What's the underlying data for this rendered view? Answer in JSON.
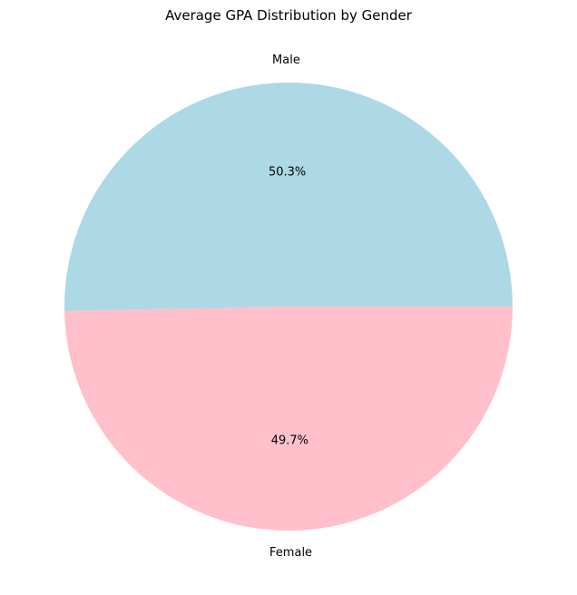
{
  "chart_data": {
    "type": "pie",
    "title": "Average GPA Distribution by Gender",
    "slices": [
      {
        "label": "Male",
        "percent": "50.3%",
        "value": 50.3,
        "color": "#add8e6"
      },
      {
        "label": "Female",
        "percent": "49.7%",
        "value": 49.7,
        "color": "#ffc0cb"
      }
    ],
    "start_angle_deg": 0,
    "direction": "counterclockwise"
  }
}
